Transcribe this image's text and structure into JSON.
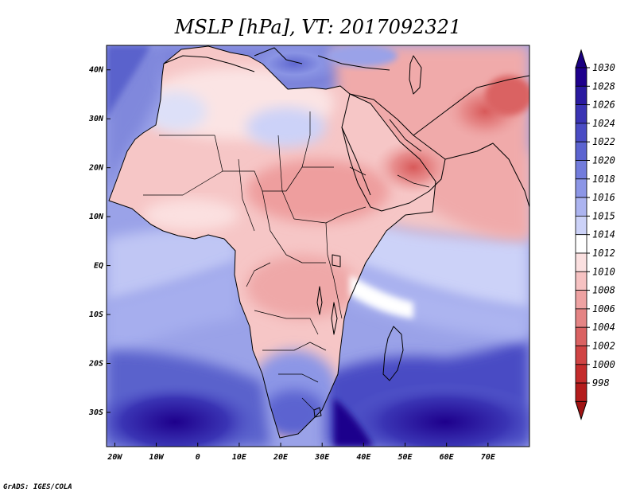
{
  "title": "MSLP [hPa], VT: 2017092321",
  "credit": "GrADS: IGES/COLA",
  "map": {
    "lon_range": [
      -22,
      80
    ],
    "lat_range": [
      -37,
      45
    ],
    "lat_ticks": [
      {
        "value": 40,
        "label": "40N"
      },
      {
        "value": 30,
        "label": "30N"
      },
      {
        "value": 20,
        "label": "20N"
      },
      {
        "value": 10,
        "label": "10N"
      },
      {
        "value": 0,
        "label": "EQ"
      },
      {
        "value": -10,
        "label": "10S"
      },
      {
        "value": -20,
        "label": "20S"
      },
      {
        "value": -30,
        "label": "30S"
      }
    ],
    "lon_ticks": [
      {
        "value": -20,
        "label": "20W"
      },
      {
        "value": -10,
        "label": "10W"
      },
      {
        "value": 0,
        "label": "0"
      },
      {
        "value": 10,
        "label": "10E"
      },
      {
        "value": 20,
        "label": "20E"
      },
      {
        "value": 30,
        "label": "30E"
      },
      {
        "value": 40,
        "label": "40E"
      },
      {
        "value": 50,
        "label": "50E"
      },
      {
        "value": 60,
        "label": "60E"
      },
      {
        "value": 70,
        "label": "70E"
      }
    ]
  },
  "colorbar": {
    "levels": [
      {
        "label": "1030",
        "color": "#1e008c"
      },
      {
        "label": "1028",
        "color": "#2a1aa0"
      },
      {
        "label": "1026",
        "color": "#3a34b4"
      },
      {
        "label": "1024",
        "color": "#4a4cc4"
      },
      {
        "label": "1022",
        "color": "#5c64d0"
      },
      {
        "label": "1020",
        "color": "#727cdc"
      },
      {
        "label": "1018",
        "color": "#8c96e6"
      },
      {
        "label": "1016",
        "color": "#acb4f0"
      },
      {
        "label": "1015",
        "color": "#ccd2f8"
      },
      {
        "label": "1014",
        "color": "#ffffff"
      },
      {
        "label": "1012",
        "color": "#fbe0e0"
      },
      {
        "label": "1010",
        "color": "#f6c2c2"
      },
      {
        "label": "1008",
        "color": "#eea2a2"
      },
      {
        "label": "1006",
        "color": "#e48484"
      },
      {
        "label": "1004",
        "color": "#da6262"
      },
      {
        "label": "1002",
        "color": "#d04444"
      },
      {
        "label": "1000",
        "color": "#c42c2c"
      },
      {
        "label": "998",
        "color": "#b41c1c"
      }
    ],
    "top_arrow_color": "#1a0080",
    "bottom_arrow_color": "#a01414"
  }
}
